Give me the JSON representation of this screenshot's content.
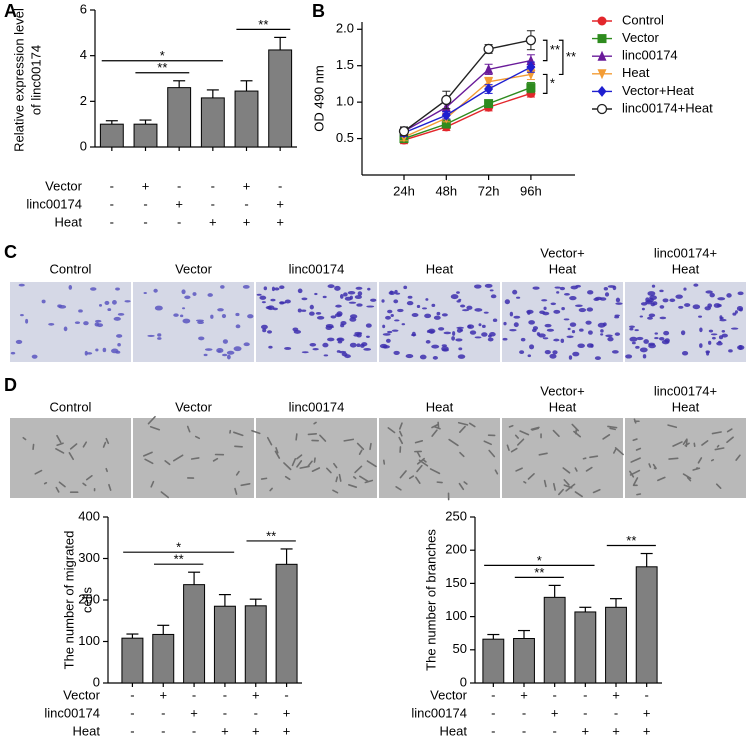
{
  "chart_data": [
    {
      "type": "bar",
      "panel": "A",
      "y_label": [
        "Relative expression level",
        "of linc00174"
      ],
      "values": [
        1.0,
        1.0,
        2.6,
        2.15,
        2.45,
        4.25
      ],
      "errors": [
        0.15,
        0.18,
        0.3,
        0.35,
        0.45,
        0.55
      ],
      "color": "#808080",
      "ylim": [
        0,
        6
      ],
      "yticks": [
        0,
        2,
        4,
        6
      ],
      "conditions": [
        {
          "name": "Vector",
          "signs": [
            "-",
            "+",
            "-",
            "-",
            "+",
            "-"
          ]
        },
        {
          "name": "linc00174",
          "signs": [
            "-",
            "-",
            "+",
            "-",
            "-",
            "+"
          ]
        },
        {
          "name": "Heat",
          "signs": [
            "-",
            "-",
            "-",
            "+",
            "+",
            "+"
          ]
        }
      ],
      "annotations": [
        {
          "label": "**",
          "between": [
            1,
            2
          ]
        },
        {
          "label": "*",
          "between": [
            0,
            3
          ]
        },
        {
          "label": "**",
          "between": [
            4,
            5
          ]
        }
      ]
    },
    {
      "type": "line",
      "panel": "B",
      "y_label": "OD 490 nm",
      "categories": [
        "24h",
        "48h",
        "72h",
        "96h"
      ],
      "ylim": [
        0,
        2.1
      ],
      "yticks": [
        0.5,
        {
          "value": 1,
          "label": "1.0"
        },
        1.5,
        {
          "value": 2,
          "label": "2.0"
        }
      ],
      "legend": "right",
      "series": [
        {
          "name": "Control",
          "color": "#e3262b",
          "marker": "circle",
          "values": [
            0.48,
            0.66,
            0.93,
            1.12
          ],
          "errors": [
            0.05,
            0.05,
            0.05,
            0.05
          ]
        },
        {
          "name": "Vector",
          "color": "#2e8b1e",
          "marker": "square",
          "values": [
            0.5,
            0.7,
            0.98,
            1.2
          ],
          "errors": [
            0.05,
            0.05,
            0.05,
            0.07
          ]
        },
        {
          "name": "linc00174",
          "color": "#6a1b9a",
          "marker": "triangle",
          "values": [
            0.6,
            0.93,
            1.45,
            1.57
          ],
          "errors": [
            0.05,
            0.08,
            0.07,
            0.08
          ]
        },
        {
          "name": "Heat",
          "color": "#f39c34",
          "marker": "triangle-down",
          "values": [
            0.52,
            0.78,
            1.28,
            1.38
          ],
          "errors": [
            0.05,
            0.05,
            0.06,
            0.07
          ]
        },
        {
          "name": "Vector+Heat",
          "color": "#1f1fd0",
          "marker": "diamond",
          "values": [
            0.58,
            0.82,
            1.18,
            1.48
          ],
          "errors": [
            0.05,
            0.05,
            0.06,
            0.07
          ]
        },
        {
          "name": "linc00174+Heat",
          "color": "#222222",
          "marker": "open-circle",
          "values": [
            0.6,
            1.03,
            1.73,
            1.85
          ],
          "errors": [
            0.06,
            0.12,
            0.06,
            0.13
          ]
        }
      ],
      "annotations": [
        {
          "label": "**",
          "between": [
            5,
            2
          ]
        },
        {
          "label": "**",
          "between": [
            5,
            3
          ]
        },
        {
          "label": "*",
          "between": [
            3,
            0
          ]
        }
      ]
    },
    {
      "type": "bar",
      "y_label": [
        "The number of migrated",
        "cells"
      ],
      "values": [
        108,
        117,
        237,
        185,
        186,
        286
      ],
      "errors": [
        10,
        22,
        30,
        28,
        16,
        37
      ],
      "color": "#808080",
      "ylim": [
        0,
        400
      ],
      "yticks": [
        0,
        100,
        200,
        300,
        400
      ],
      "conditions": [
        {
          "name": "Vector",
          "signs": [
            "-",
            "+",
            "-",
            "-",
            "+",
            "-"
          ]
        },
        {
          "name": "linc00174",
          "signs": [
            "-",
            "-",
            "+",
            "-",
            "-",
            "+"
          ]
        },
        {
          "name": "Heat",
          "signs": [
            "-",
            "-",
            "-",
            "+",
            "+",
            "+"
          ]
        }
      ],
      "annotations": [
        {
          "label": "**",
          "between": [
            1,
            2
          ]
        },
        {
          "label": "*",
          "between": [
            0,
            3
          ]
        },
        {
          "label": "**",
          "between": [
            4,
            5
          ]
        }
      ]
    },
    {
      "type": "bar",
      "y_label": [
        "The number of branches"
      ],
      "values": [
        66,
        67,
        129,
        107,
        114,
        175
      ],
      "errors": [
        7,
        12,
        18,
        7,
        13,
        20
      ],
      "color": "#808080",
      "ylim": [
        0,
        250
      ],
      "yticks": [
        0,
        50,
        100,
        150,
        200,
        250
      ],
      "conditions": [
        {
          "name": "Vector",
          "signs": [
            "-",
            "+",
            "-",
            "-",
            "+",
            "-"
          ]
        },
        {
          "name": "linc00174",
          "signs": [
            "-",
            "-",
            "+",
            "-",
            "-",
            "+"
          ]
        },
        {
          "name": "Heat",
          "signs": [
            "-",
            "-",
            "-",
            "+",
            "+",
            "+"
          ]
        }
      ],
      "annotations": [
        {
          "label": "**",
          "between": [
            1,
            2
          ]
        },
        {
          "label": "*",
          "between": [
            0,
            3
          ]
        },
        {
          "label": "**",
          "between": [
            4,
            5
          ]
        }
      ]
    }
  ],
  "image_panels": [
    {
      "panel": "C",
      "captions": [
        [
          "Control"
        ],
        [
          "Vector"
        ],
        [
          "linc00174"
        ],
        [
          "Heat"
        ],
        [
          "Vector+",
          "Heat"
        ],
        [
          "linc00174+",
          "Heat"
        ]
      ]
    },
    {
      "panel": "D",
      "captions": [
        [
          "Control"
        ],
        [
          "Vector"
        ],
        [
          "linc00174"
        ],
        [
          "Heat"
        ],
        [
          "Vector+",
          "Heat"
        ],
        [
          "linc00174+",
          "Heat"
        ]
      ]
    }
  ]
}
